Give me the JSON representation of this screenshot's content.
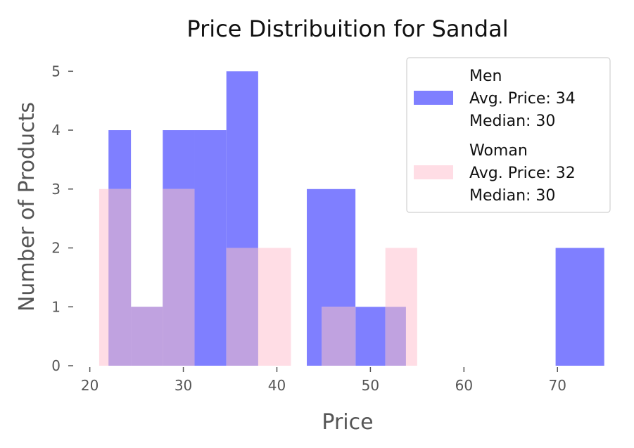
{
  "chart_data": {
    "type": "bar",
    "title": "Price Distribuition for Sandal",
    "xlabel": "Price",
    "ylabel": "Number of Products",
    "xlim": [
      19.2,
      76.0
    ],
    "ylim": [
      0,
      5.35
    ],
    "xticks": [
      20,
      30,
      40,
      50,
      60,
      70
    ],
    "yticks": [
      0,
      1,
      2,
      3,
      4,
      5
    ],
    "grid": false,
    "legend_position": "top-right",
    "series": [
      {
        "name": "Men",
        "legend_lines": [
          "Men",
          "Avg. Price: 34",
          "Median: 30"
        ],
        "color": "#7f7fff",
        "bins": [
          {
            "x0": 22.0,
            "x1": 24.4,
            "count": 4
          },
          {
            "x0": 24.4,
            "x1": 27.8,
            "count": 1
          },
          {
            "x0": 27.8,
            "x1": 31.2,
            "count": 4
          },
          {
            "x0": 31.2,
            "x1": 34.6,
            "count": 4
          },
          {
            "x0": 34.6,
            "x1": 38.0,
            "count": 5
          },
          {
            "x0": 43.2,
            "x1": 48.4,
            "count": 3
          },
          {
            "x0": 48.4,
            "x1": 51.6,
            "count": 1
          },
          {
            "x0": 51.6,
            "x1": 53.8,
            "count": 1
          },
          {
            "x0": 69.8,
            "x1": 75.0,
            "count": 2
          }
        ]
      },
      {
        "name": "Woman",
        "legend_lines": [
          "Woman",
          "Avg. Price: 32",
          "Median: 30"
        ],
        "color": "#ffdde5",
        "bins": [
          {
            "x0": 21.0,
            "x1": 24.4,
            "count": 3
          },
          {
            "x0": 24.4,
            "x1": 27.8,
            "count": 1
          },
          {
            "x0": 27.8,
            "x1": 31.2,
            "count": 3
          },
          {
            "x0": 34.6,
            "x1": 38.0,
            "count": 2
          },
          {
            "x0": 38.0,
            "x1": 41.5,
            "count": 2
          },
          {
            "x0": 44.8,
            "x1": 48.4,
            "count": 1
          },
          {
            "x0": 51.6,
            "x1": 55.0,
            "count": 2
          }
        ]
      }
    ],
    "overlap_color": "#c0a2e0"
  }
}
